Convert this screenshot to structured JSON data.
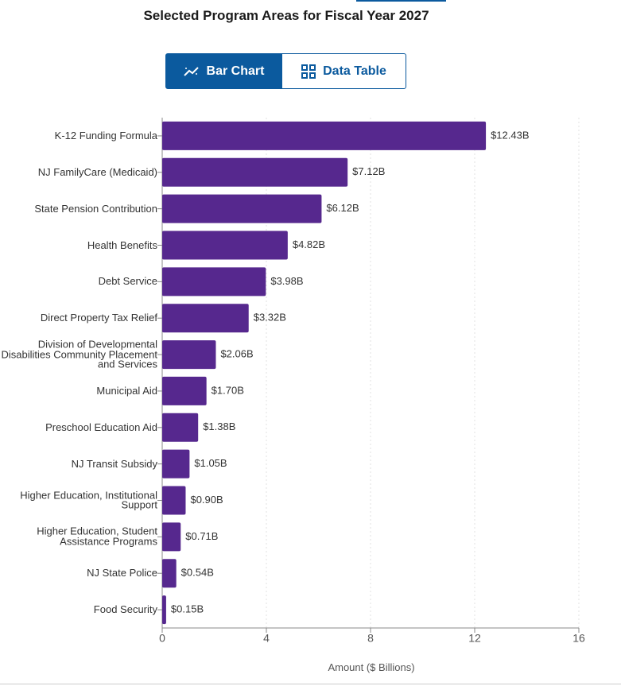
{
  "buttons": [
    "Bar Chart",
    "Data Table"
  ],
  "chart_data": {
    "type": "barh",
    "title": "Selected Program Areas for Fiscal Year 2027",
    "xlabel": "Amount ($ Billions)",
    "categories": [
      "K-12 Funding Formula",
      "NJ FamilyCare (Medicaid)",
      "State Pension Contribution",
      "Health Benefits",
      "Debt Service",
      "Direct Property Tax Relief",
      "Division of Developmental Disabilities Community Placement and Services",
      "Municipal Aid",
      "Preschool Education Aid",
      "NJ Transit Subsidy",
      "Higher Education, Institutional Support",
      "Higher Education, Student Assistance Programs",
      "NJ State Police",
      "Food Security"
    ],
    "values": [
      12.43,
      7.12,
      6.12,
      4.82,
      3.98,
      3.32,
      2.06,
      1.7,
      1.38,
      1.05,
      0.9,
      0.71,
      0.54,
      0.15
    ],
    "value_labels": [
      "$12.43B",
      "$7.12B",
      "$6.12B",
      "$4.82B",
      "$3.98B",
      "$3.32B",
      "$2.06B",
      "$1.70B",
      "$1.38B",
      "$1.05B",
      "$0.90B",
      "$0.71B",
      "$0.54B",
      "$0.15B"
    ],
    "color": "#56288e",
    "xlim": [
      0,
      16
    ],
    "xticks": [
      0,
      4,
      8,
      12,
      16
    ],
    "grid": true
  }
}
